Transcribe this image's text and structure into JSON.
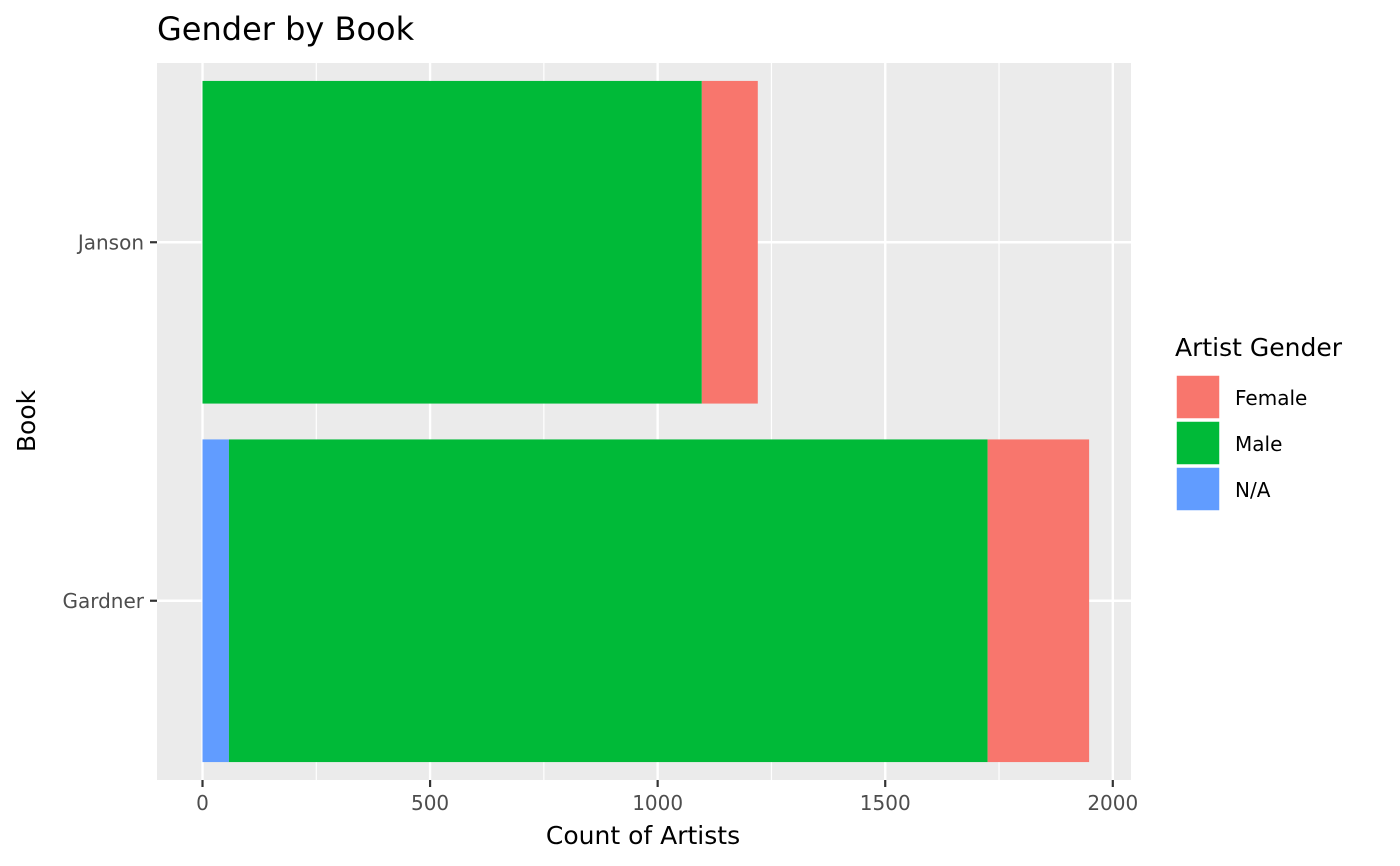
{
  "chart_data": {
    "type": "bar",
    "orientation": "horizontal",
    "stacked": true,
    "title": "Gender by Book",
    "xlabel": "Count of Artists",
    "ylabel": "Book",
    "xlim": [
      -100,
      2040
    ],
    "x_ticks": [
      0,
      500,
      1000,
      1500,
      2000
    ],
    "x_tick_labels": [
      "0",
      "500",
      "1000",
      "1500",
      "2000"
    ],
    "categories": [
      "Janson",
      "Gardner"
    ],
    "stack_order": [
      "N/A",
      "Male",
      "Female"
    ],
    "series": [
      {
        "name": "Female",
        "color": "#F8766D",
        "values": [
          123,
          223
        ]
      },
      {
        "name": "Male",
        "color": "#00BA38",
        "values": [
          1097,
          1667
        ]
      },
      {
        "name": "N/A",
        "color": "#619CFF",
        "values": [
          0,
          58
        ]
      }
    ],
    "legend": {
      "title": "Artist Gender",
      "placement": "right",
      "entries": [
        "Female",
        "Male",
        "N/A"
      ]
    },
    "grid": true,
    "panel_background": "#EBEBEB"
  }
}
